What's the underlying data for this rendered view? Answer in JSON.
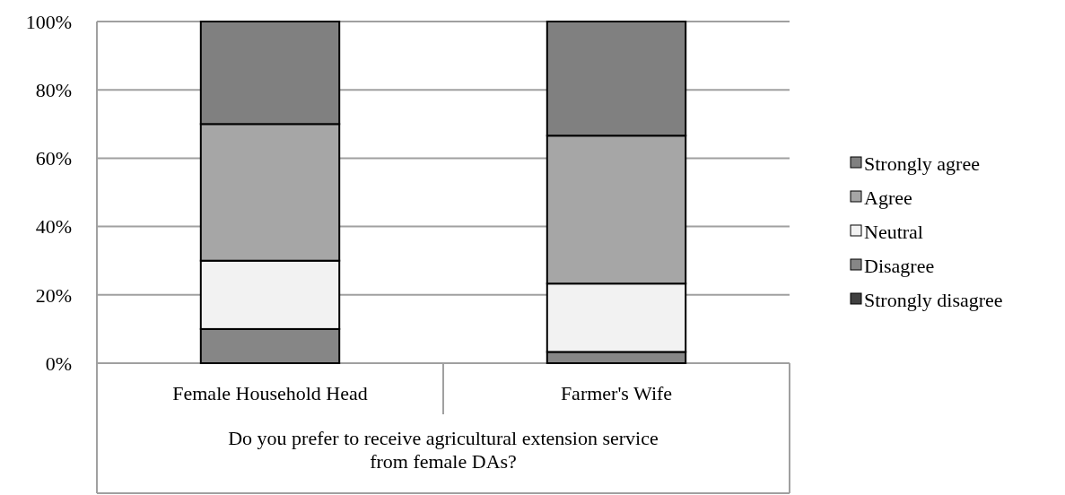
{
  "chart_data": {
    "type": "bar",
    "stacked": true,
    "xlabel": "Do you prefer to receive agricultural extension service from female DAs?",
    "categories": [
      "Female Household Head",
      "Farmer's Wife"
    ],
    "series": [
      {
        "name": "Strongly disagree",
        "color": "#404040",
        "values": [
          0,
          0
        ]
      },
      {
        "name": "Disagree",
        "color": "#868686",
        "values": [
          10,
          3.3
        ]
      },
      {
        "name": "Neutral",
        "color": "#f2f2f2",
        "values": [
          20,
          20
        ]
      },
      {
        "name": "Agree",
        "color": "#a6a6a6",
        "values": [
          40,
          43.3
        ]
      },
      {
        "name": "Strongly agree",
        "color": "#808080",
        "values": [
          30,
          33.4
        ]
      }
    ],
    "ylim": [
      0,
      100
    ],
    "yticks": [
      {
        "value": 0,
        "label": "0%"
      },
      {
        "value": 20,
        "label": "20%"
      },
      {
        "value": 40,
        "label": "40%"
      },
      {
        "value": 60,
        "label": "60%"
      },
      {
        "value": 80,
        "label": "80%"
      },
      {
        "value": 100,
        "label": "100%"
      }
    ],
    "grid": "y",
    "legend": "right"
  }
}
